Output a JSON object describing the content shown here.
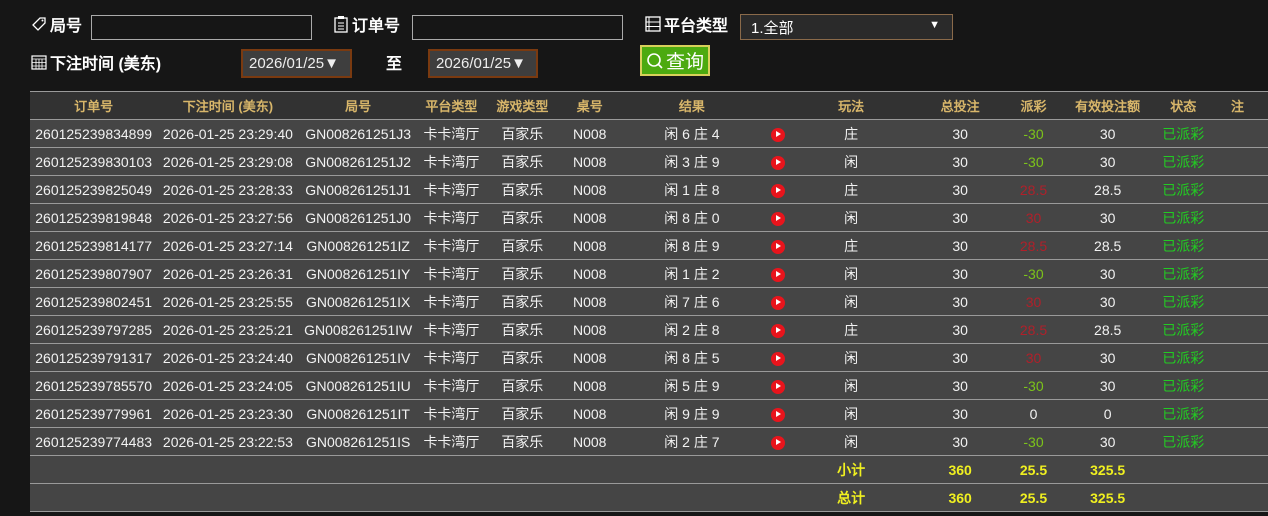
{
  "filters": {
    "round_label": "局号",
    "round_value": "",
    "order_label": "订单号",
    "order_value": "",
    "platform_label": "平台类型",
    "platform_value": "1.全部",
    "time_label": "下注时间 (美东)",
    "date_from": "2026/01/25▼",
    "to_label": "至",
    "date_to": "2026/01/25▼",
    "query_label": "查询"
  },
  "table": {
    "headers": [
      "订单号",
      "下注时间 (美东)",
      "局号",
      "平台类型",
      "游戏类型",
      "桌号",
      "结果",
      "",
      "玩法",
      "总投注",
      "派彩",
      "有效投注额",
      "状态",
      "注"
    ],
    "rows": [
      [
        "260125239834899",
        "2026-01-25 23:29:40",
        "GN008261251J3",
        "卡卡湾厅",
        "百家乐",
        "N008",
        "闲 6 庄 4",
        "庄",
        "30",
        "-30",
        "30",
        "已派彩"
      ],
      [
        "260125239830103",
        "2026-01-25 23:29:08",
        "GN008261251J2",
        "卡卡湾厅",
        "百家乐",
        "N008",
        "闲 3 庄 9",
        "闲",
        "30",
        "-30",
        "30",
        "已派彩"
      ],
      [
        "260125239825049",
        "2026-01-25 23:28:33",
        "GN008261251J1",
        "卡卡湾厅",
        "百家乐",
        "N008",
        "闲 1 庄 8",
        "庄",
        "30",
        "28.5",
        "28.5",
        "已派彩"
      ],
      [
        "260125239819848",
        "2026-01-25 23:27:56",
        "GN008261251J0",
        "卡卡湾厅",
        "百家乐",
        "N008",
        "闲 8 庄 0",
        "闲",
        "30",
        "30",
        "30",
        "已派彩"
      ],
      [
        "260125239814177",
        "2026-01-25 23:27:14",
        "GN008261251IZ",
        "卡卡湾厅",
        "百家乐",
        "N008",
        "闲 8 庄 9",
        "庄",
        "30",
        "28.5",
        "28.5",
        "已派彩"
      ],
      [
        "260125239807907",
        "2026-01-25 23:26:31",
        "GN008261251IY",
        "卡卡湾厅",
        "百家乐",
        "N008",
        "闲 1 庄 2",
        "闲",
        "30",
        "-30",
        "30",
        "已派彩"
      ],
      [
        "260125239802451",
        "2026-01-25 23:25:55",
        "GN008261251IX",
        "卡卡湾厅",
        "百家乐",
        "N008",
        "闲 7 庄 6",
        "闲",
        "30",
        "30",
        "30",
        "已派彩"
      ],
      [
        "260125239797285",
        "2026-01-25 23:25:21",
        "GN008261251IW",
        "卡卡湾厅",
        "百家乐",
        "N008",
        "闲 2 庄 8",
        "庄",
        "30",
        "28.5",
        "28.5",
        "已派彩"
      ],
      [
        "260125239791317",
        "2026-01-25 23:24:40",
        "GN008261251IV",
        "卡卡湾厅",
        "百家乐",
        "N008",
        "闲 8 庄 5",
        "闲",
        "30",
        "30",
        "30",
        "已派彩"
      ],
      [
        "260125239785570",
        "2026-01-25 23:24:05",
        "GN008261251IU",
        "卡卡湾厅",
        "百家乐",
        "N008",
        "闲 5 庄 9",
        "闲",
        "30",
        "-30",
        "30",
        "已派彩"
      ],
      [
        "260125239779961",
        "2026-01-25 23:23:30",
        "GN008261251IT",
        "卡卡湾厅",
        "百家乐",
        "N008",
        "闲 9 庄 9",
        "闲",
        "30",
        "0",
        "0",
        "已派彩"
      ],
      [
        "260125239774483",
        "2026-01-25 23:22:53",
        "GN008261251IS",
        "卡卡湾厅",
        "百家乐",
        "N008",
        "闲 2 庄 7",
        "闲",
        "30",
        "-30",
        "30",
        "已派彩"
      ]
    ],
    "subtotal": {
      "label": "小计",
      "total_bet": "360",
      "payout": "25.5",
      "valid_bet": "325.5"
    },
    "total": {
      "label": "总计",
      "total_bet": "360",
      "payout": "25.5",
      "valid_bet": "325.5"
    }
  },
  "colors": {
    "negative_payout": "#7cc41a",
    "positive_payout": "#b0202a",
    "status": "#22cc22",
    "totals": "#f0f020",
    "header_text": "#d8b66a"
  }
}
